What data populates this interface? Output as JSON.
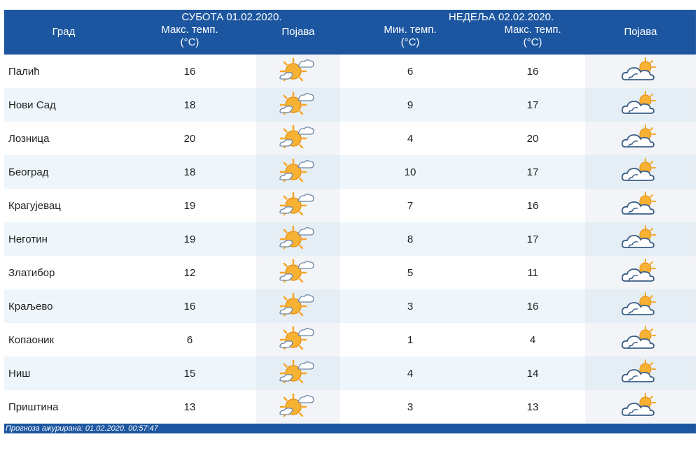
{
  "header": {
    "city_label": "Град",
    "day1": {
      "title": "СУБОТА  01.02.2020.",
      "max_label_line1": "Макс. темп.",
      "max_label_line2": "(°C)",
      "phenomenon_label": "Појава"
    },
    "day2": {
      "title": "НЕДЕЉА  02.02.2020.",
      "min_label_line1": "Мин. темп.",
      "min_label_line2": "(°C)",
      "max_label_line1": "Макс. темп.",
      "max_label_line2": "(°C)",
      "phenomenon_label": "Појава"
    }
  },
  "rows": [
    {
      "city": "Палић",
      "d1_max": "16",
      "d2_min": "6",
      "d2_max": "16"
    },
    {
      "city": "Нови Сад",
      "d1_max": "18",
      "d2_min": "9",
      "d2_max": "17"
    },
    {
      "city": "Лозница",
      "d1_max": "20",
      "d2_min": "4",
      "d2_max": "20"
    },
    {
      "city": "Београд",
      "d1_max": "18",
      "d2_min": "10",
      "d2_max": "17"
    },
    {
      "city": "Крагујевац",
      "d1_max": "19",
      "d2_min": "7",
      "d2_max": "16"
    },
    {
      "city": "Неготин",
      "d1_max": "19",
      "d2_min": "8",
      "d2_max": "17"
    },
    {
      "city": "Златибор",
      "d1_max": "12",
      "d2_min": "5",
      "d2_max": "11"
    },
    {
      "city": "Краљево",
      "d1_max": "16",
      "d2_min": "3",
      "d2_max": "16"
    },
    {
      "city": "Копаоник",
      "d1_max": "6",
      "d2_min": "1",
      "d2_max": "4"
    },
    {
      "city": "Ниш",
      "d1_max": "15",
      "d2_min": "4",
      "d2_max": "14"
    },
    {
      "city": "Приштина",
      "d1_max": "13",
      "d2_min": "3",
      "d2_max": "13"
    }
  ],
  "icons": {
    "day1": "sun-with-small-cloud-icon",
    "day2": "cloud-with-sun-icon"
  },
  "colors": {
    "header_bg": "#1c56a0",
    "sun": "#f5a623",
    "cloud_outline": "#3a5f86"
  },
  "footer": {
    "text": "Прогноза ажурирана:  01.02.2020. 00:57:47"
  }
}
